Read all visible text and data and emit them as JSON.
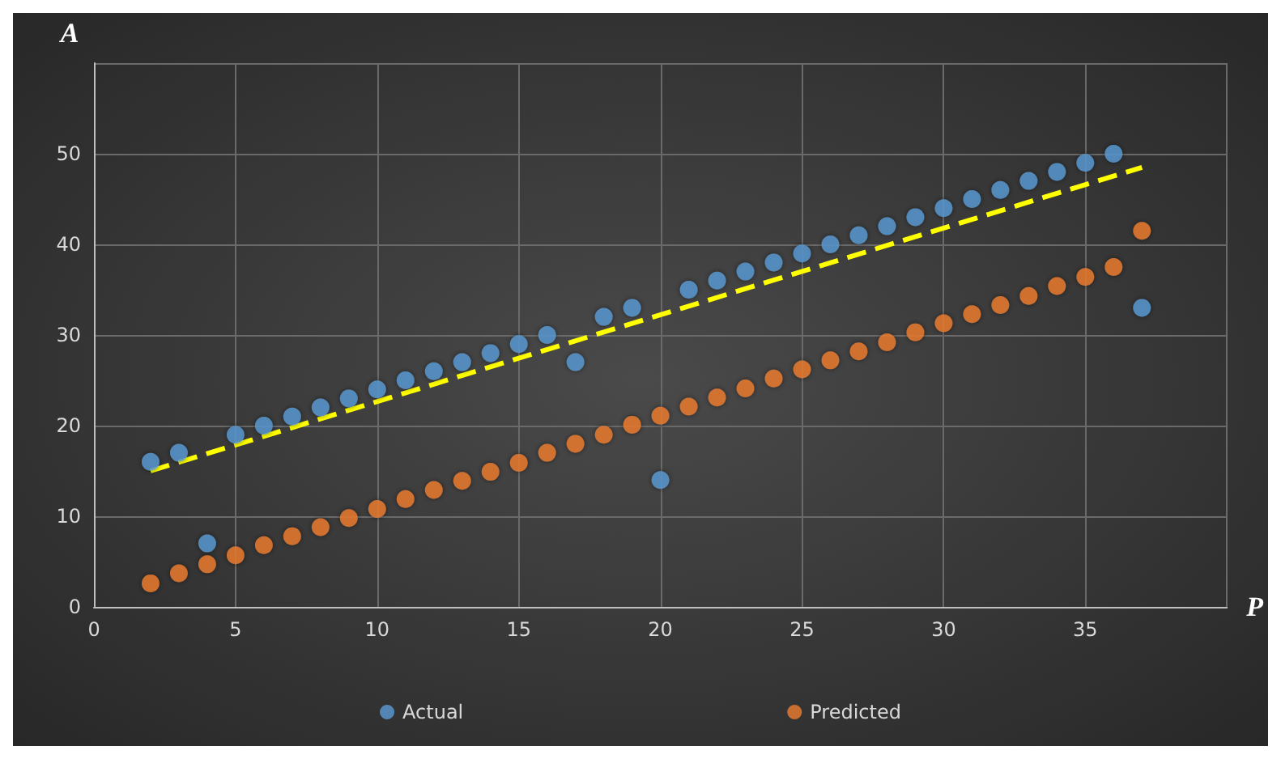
{
  "chart_data": {
    "type": "scatter",
    "xlabel": "P",
    "ylabel": "A",
    "x": [
      2,
      3,
      4,
      5,
      6,
      7,
      8,
      9,
      10,
      11,
      12,
      13,
      14,
      15,
      16,
      17,
      18,
      19,
      20,
      21,
      22,
      23,
      24,
      25,
      26,
      27,
      28,
      29,
      30,
      31,
      32,
      33,
      34,
      35,
      36,
      37
    ],
    "series": [
      {
        "name": "Actual",
        "color": "#5b9bd5",
        "values": [
          16,
          17,
          7,
          19,
          20,
          21,
          22,
          23,
          24,
          25,
          26,
          27,
          28,
          29,
          30,
          27,
          32,
          33,
          14,
          35,
          36,
          37,
          38,
          39,
          40,
          41,
          42,
          43,
          44,
          45,
          46,
          47,
          48,
          49,
          50,
          33
        ]
      },
      {
        "name": "Predicted",
        "color": "#ed7d31",
        "values": [
          2.6,
          3.7,
          4.7,
          5.7,
          6.8,
          7.8,
          8.8,
          9.8,
          10.8,
          11.9,
          12.9,
          13.9,
          14.9,
          15.9,
          17,
          18,
          19,
          20.1,
          21.1,
          22.1,
          23.1,
          24.1,
          25.2,
          26.2,
          27.2,
          28.2,
          29.2,
          30.3,
          31.3,
          32.3,
          33.3,
          34.3,
          35.4,
          36.4,
          37.5,
          41.5
        ]
      },
      {
        "type": "line",
        "color": "#ffff00",
        "line_style": "dashed",
        "marker": "none",
        "x": [
          2,
          37
        ],
        "values": [
          15,
          48.5
        ]
      }
    ],
    "xlim": [
      0,
      40
    ],
    "xticks": [
      0,
      5,
      10,
      15,
      20,
      25,
      30,
      35,
      {
        "value": 40,
        "label": null
      }
    ],
    "ylim": [
      0,
      60
    ],
    "yticks": [
      0,
      10,
      20,
      30,
      40,
      50,
      {
        "value": 60,
        "label": null
      }
    ],
    "grid": true,
    "legend": "bottom",
    "marker": "circle"
  }
}
